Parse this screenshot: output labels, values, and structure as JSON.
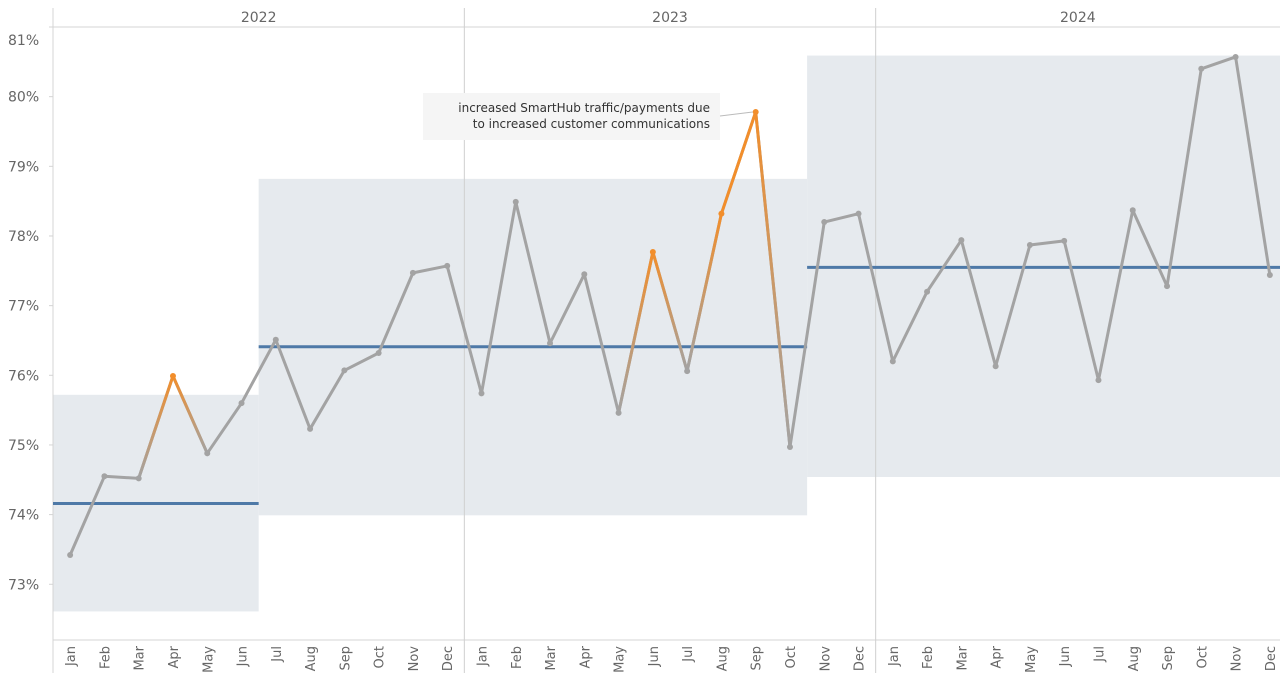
{
  "chart_data": {
    "type": "line",
    "groups": [
      "2022",
      "2023",
      "2024"
    ],
    "categories": [
      "Jan",
      "Feb",
      "Mar",
      "Apr",
      "May",
      "Jun",
      "Jul",
      "Aug",
      "Sep",
      "Oct",
      "Nov",
      "Dec",
      "Jan",
      "Feb",
      "Mar",
      "Apr",
      "May",
      "Jun",
      "Jul",
      "Aug",
      "Sep",
      "Oct",
      "Nov",
      "Dec",
      "Jan",
      "Feb",
      "Mar",
      "Apr",
      "May",
      "Jun",
      "Jul",
      "Aug",
      "Sep",
      "Oct",
      "Nov",
      "Dec"
    ],
    "series": [
      {
        "color": "#a3a3a3",
        "highlight_color": "#f28e2b",
        "values": [
          73.42,
          74.55,
          74.52,
          75.99,
          74.88,
          75.6,
          76.51,
          75.23,
          76.07,
          76.32,
          77.47,
          77.57,
          75.74,
          78.49,
          76.46,
          77.45,
          75.46,
          77.77,
          76.06,
          78.32,
          79.78,
          74.97,
          78.2,
          78.32,
          76.2,
          77.2,
          77.94,
          76.13,
          77.87,
          77.93,
          75.93,
          78.37,
          77.28,
          80.4,
          80.57,
          77.44
        ],
        "highlighted": [
          false,
          false,
          false,
          true,
          false,
          false,
          false,
          false,
          false,
          false,
          false,
          false,
          false,
          false,
          false,
          false,
          false,
          true,
          false,
          true,
          true,
          false,
          false,
          false,
          false,
          false,
          false,
          false,
          false,
          false,
          false,
          false,
          false,
          false,
          false,
          false
        ]
      }
    ],
    "control_segments": [
      {
        "span": [
          0,
          5
        ],
        "mean": 74.16,
        "upper": 75.72,
        "lower": 72.61
      },
      {
        "span": [
          6,
          21
        ],
        "mean": 76.41,
        "upper": 78.82,
        "lower": 73.99
      },
      {
        "span": [
          22,
          35
        ],
        "mean": 77.55,
        "upper": 80.59,
        "lower": 74.54
      }
    ],
    "band_color": "#e6eaee",
    "mean_color": "#4e79a7",
    "ylim": [
      72.2,
      81
    ],
    "yticks": [
      {
        "value": 73,
        "label": "73%"
      },
      {
        "value": 74,
        "label": "74%"
      },
      {
        "value": 75,
        "label": "75%"
      },
      {
        "value": 76,
        "label": "76%"
      },
      {
        "value": 77,
        "label": "77%"
      },
      {
        "value": 78,
        "label": "78%"
      },
      {
        "value": 79,
        "label": "79%"
      },
      {
        "value": 80,
        "label": "80%"
      },
      {
        "value": 81,
        "label": "81%"
      }
    ],
    "annotation": {
      "point": 20,
      "lines": [
        "increased SmartHub traffic/payments  due",
        "to increased customer communications"
      ]
    }
  }
}
